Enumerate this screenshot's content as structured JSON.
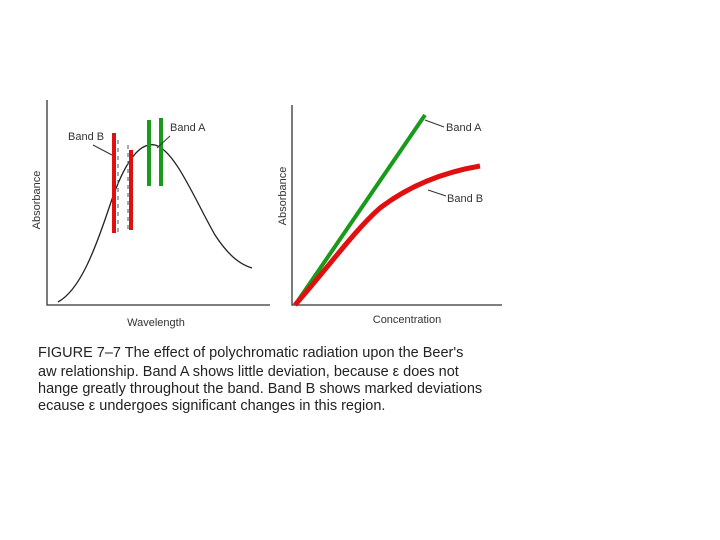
{
  "left_panel": {
    "band_b_label": "Band B",
    "band_a_label": "Band A",
    "y_label": "Absorbance",
    "x_label": "Wavelength"
  },
  "right_panel": {
    "band_a_label": "Band A",
    "band_b_label": "Band B",
    "y_label": "Absorbance",
    "x_label": "Concentration"
  },
  "caption": {
    "lines": [
      "FIGURE 7–7   The effect of polychromatic radiation upon the Beer's",
      "aw relationship. Band A shows little deviation, because ε does not",
      "hange greatly throughout the band. Band B shows marked deviations",
      "ecause ε undergoes significant changes in this region."
    ]
  }
}
